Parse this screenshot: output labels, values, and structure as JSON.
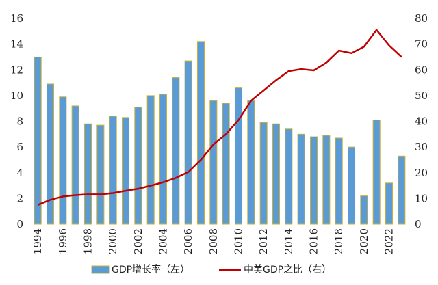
{
  "chart_data": {
    "type": "bar+line",
    "x": [
      1994,
      1995,
      1996,
      1997,
      1998,
      1999,
      2000,
      2001,
      2002,
      2003,
      2004,
      2005,
      2006,
      2007,
      2008,
      2009,
      2010,
      2011,
      2012,
      2013,
      2014,
      2015,
      2016,
      2017,
      2018,
      2019,
      2020,
      2021,
      2022,
      2023
    ],
    "x_tick_labels": [
      "1994",
      "1996",
      "1998",
      "2000",
      "2002",
      "2004",
      "2006",
      "2008",
      "2010",
      "2012",
      "2014",
      "2016",
      "2018",
      "2020",
      "2022"
    ],
    "series": [
      {
        "name": "GDP增长率（左）",
        "type": "bar",
        "axis": "left",
        "color": "#5B9BD5",
        "edge_color": "#C9B037",
        "values": [
          13.0,
          10.9,
          9.9,
          9.2,
          7.8,
          7.7,
          8.4,
          8.3,
          9.1,
          10.0,
          10.1,
          11.4,
          12.7,
          14.2,
          9.6,
          9.4,
          10.6,
          9.6,
          7.9,
          7.8,
          7.4,
          7.0,
          6.8,
          6.9,
          6.7,
          6.0,
          2.2,
          8.1,
          3.2,
          5.3
        ]
      },
      {
        "name": "中美GDP之比（右）",
        "type": "line",
        "axis": "right",
        "color": "#C00000",
        "values": [
          7.5,
          9.5,
          10.8,
          11.3,
          11.6,
          11.6,
          12.1,
          13.0,
          13.8,
          15.0,
          16.3,
          18.0,
          20.3,
          25.0,
          31.0,
          35.0,
          40.5,
          48.0,
          52.0,
          56.0,
          59.5,
          60.3,
          59.8,
          62.8,
          67.5,
          66.5,
          69.0,
          75.5,
          69.5,
          65.0
        ]
      }
    ],
    "y_left": {
      "lim": [
        0,
        16
      ],
      "ticks": [
        "0",
        "2",
        "4",
        "6",
        "8",
        "10",
        "12",
        "14",
        "16"
      ]
    },
    "y_right": {
      "lim": [
        0,
        80
      ],
      "ticks": [
        "0",
        "10",
        "20",
        "30",
        "40",
        "50",
        "60",
        "70",
        "80"
      ]
    },
    "grid": false,
    "legend_position": "bottom"
  }
}
